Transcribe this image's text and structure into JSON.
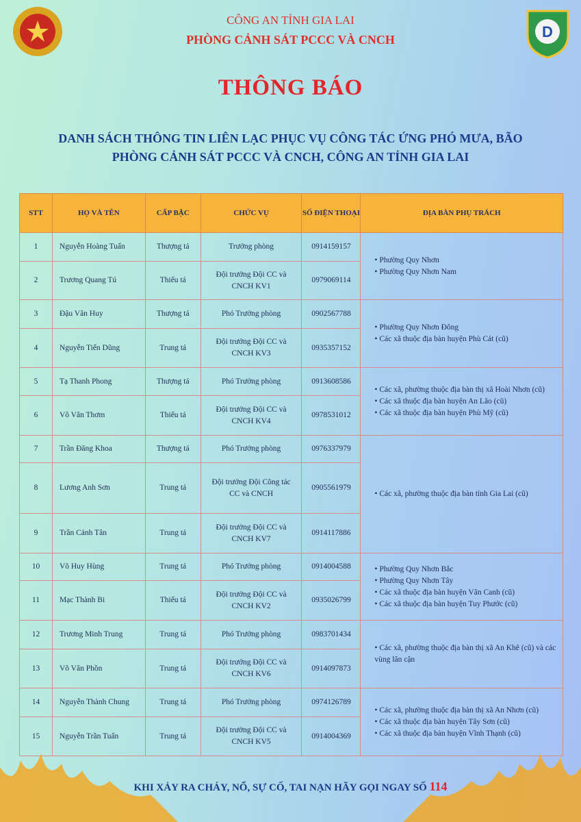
{
  "header": {
    "org_line1": "CÔNG AN TỈNH GIA LAI",
    "org_line2": "PHÒNG CẢNH SÁT PCCC VÀ CNCH",
    "title": "THÔNG BÁO",
    "subtitle_line1": "DANH SÁCH THÔNG TIN LIÊN LẠC PHỤC VỤ CÔNG TÁC ỨNG PHÓ MƯA, BÃO",
    "subtitle_line2": "PHÒNG CẢNH SÁT PCCC VÀ CNCH, CÔNG AN TỈNH GIA LAI"
  },
  "table": {
    "headers": [
      "STT",
      "HỌ VÀ TÊN",
      "CẤP BẬC",
      "CHỨC VỤ",
      "SỐ ĐIỆN THOẠI",
      "ĐỊA BÀN PHỤ TRÁCH"
    ],
    "rows": [
      {
        "stt": "1",
        "name": "Nguyễn Hoàng Tuấn",
        "rank": "Thượng tá",
        "position": "Trưởng phòng",
        "phone": "0914159157"
      },
      {
        "stt": "2",
        "name": "Trương Quang Tú",
        "rank": "Thiếu tá",
        "position": "Đội trưởng Đội CC và CNCH KV1",
        "phone": "0979069114"
      },
      {
        "stt": "3",
        "name": "Đậu Văn Huy",
        "rank": "Thượng tá",
        "position": "Phó Trưởng phòng",
        "phone": "0902567788"
      },
      {
        "stt": "4",
        "name": "Nguyễn Tiến Dũng",
        "rank": "Trung tá",
        "position": "Đội trưởng Đội CC và CNCH KV3",
        "phone": "0935357152"
      },
      {
        "stt": "5",
        "name": "Tạ Thanh Phong",
        "rank": "Thượng tá",
        "position": "Phó Trưởng phòng",
        "phone": "0913608586"
      },
      {
        "stt": "6",
        "name": "Võ Văn Thơm",
        "rank": "Thiếu tá",
        "position": "Đội trưởng Đội CC và CNCH KV4",
        "phone": "0978531012"
      },
      {
        "stt": "7",
        "name": "Trần Đăng Khoa",
        "rank": "Thượng tá",
        "position": "Phó Trưởng phòng",
        "phone": "0976337979"
      },
      {
        "stt": "8",
        "name": "Lương Anh Sơn",
        "rank": "Trung tá",
        "position": "Đội trưởng Đội Công tác CC và CNCH",
        "phone": "0905561979"
      },
      {
        "stt": "9",
        "name": "Trần Cảnh Tân",
        "rank": "Trung tá",
        "position": "Đội trưởng Đội CC và CNCH KV7",
        "phone": "0914117886"
      },
      {
        "stt": "10",
        "name": "Võ Huy Hùng",
        "rank": "Trung tá",
        "position": "Phó Trưởng phòng",
        "phone": "0914004588"
      },
      {
        "stt": "11",
        "name": "Mạc Thành Bi",
        "rank": "Thiếu tá",
        "position": "Đội trưởng Đội CC và CNCH KV2",
        "phone": "0935026799"
      },
      {
        "stt": "12",
        "name": "Trương Minh Trung",
        "rank": "Trung tá",
        "position": "Phó Trưởng phòng",
        "phone": "0983701434"
      },
      {
        "stt": "13",
        "name": "Võ Văn Phồn",
        "rank": "Trung tá",
        "position": "Đội trưởng Đội CC và CNCH KV6",
        "phone": "0914097873"
      },
      {
        "stt": "14",
        "name": "Nguyễn Thành Chung",
        "rank": "Trung tá",
        "position": "Phó Trưởng phòng",
        "phone": "0974126789"
      },
      {
        "stt": "15",
        "name": "Nguyễn Trần Tuấn",
        "rank": "Trung tá",
        "position": "Đội trưởng Đội CC và CNCH KV5",
        "phone": "0914004369"
      }
    ],
    "areas": [
      {
        "rows": 2,
        "items": [
          "Phường Quy Nhơn",
          "Phường Quy Nhơn Nam"
        ]
      },
      {
        "rows": 2,
        "items": [
          "Phường Quy Nhơn Đông",
          "Các xã thuộc địa bàn huyện Phù Cát (cũ)"
        ]
      },
      {
        "rows": 2,
        "items": [
          "Các xã, phường thuộc địa bàn thị xã Hoài Nhơn (cũ)",
          "Các xã thuộc địa bàn huyện An Lão (cũ)",
          "Các xã thuộc địa bàn huyện Phù Mỹ (cũ)"
        ]
      },
      {
        "rows": 3,
        "items": [
          "Các xã, phường thuộc địa bàn tỉnh Gia Lai (cũ)"
        ]
      },
      {
        "rows": 2,
        "items": [
          "Phường Quy Nhơn Bắc",
          "Phường Quy Nhơn Tây",
          "Các xã thuộc địa bàn huyện Vân Canh (cũ)",
          "Các xã thuộc địa bàn huyện Tuy Phước (cũ)"
        ]
      },
      {
        "rows": 2,
        "items": [
          "Các xã, phường thuộc địa bàn thị xã An Khê (cũ) và các vùng lân cận"
        ]
      },
      {
        "rows": 2,
        "items": [
          "Các xã, phường thuộc địa bàn thị xã An Nhơn (cũ)",
          "Các xã thuộc địa bàn huyện Tây Sơn (cũ)",
          "Các xã thuộc địa bàn huyện Vĩnh Thạnh (cũ)"
        ]
      }
    ]
  },
  "footer": {
    "text": "KHI XẢY RA CHÁY, NỔ, SỰ CỐ, TAI NẠN HÃY GỌI NGAY SỐ ",
    "number": "114"
  },
  "colors": {
    "header_red": "#e0302a",
    "table_header": "#f7b43c",
    "text_blue": "#1b3a8a"
  }
}
